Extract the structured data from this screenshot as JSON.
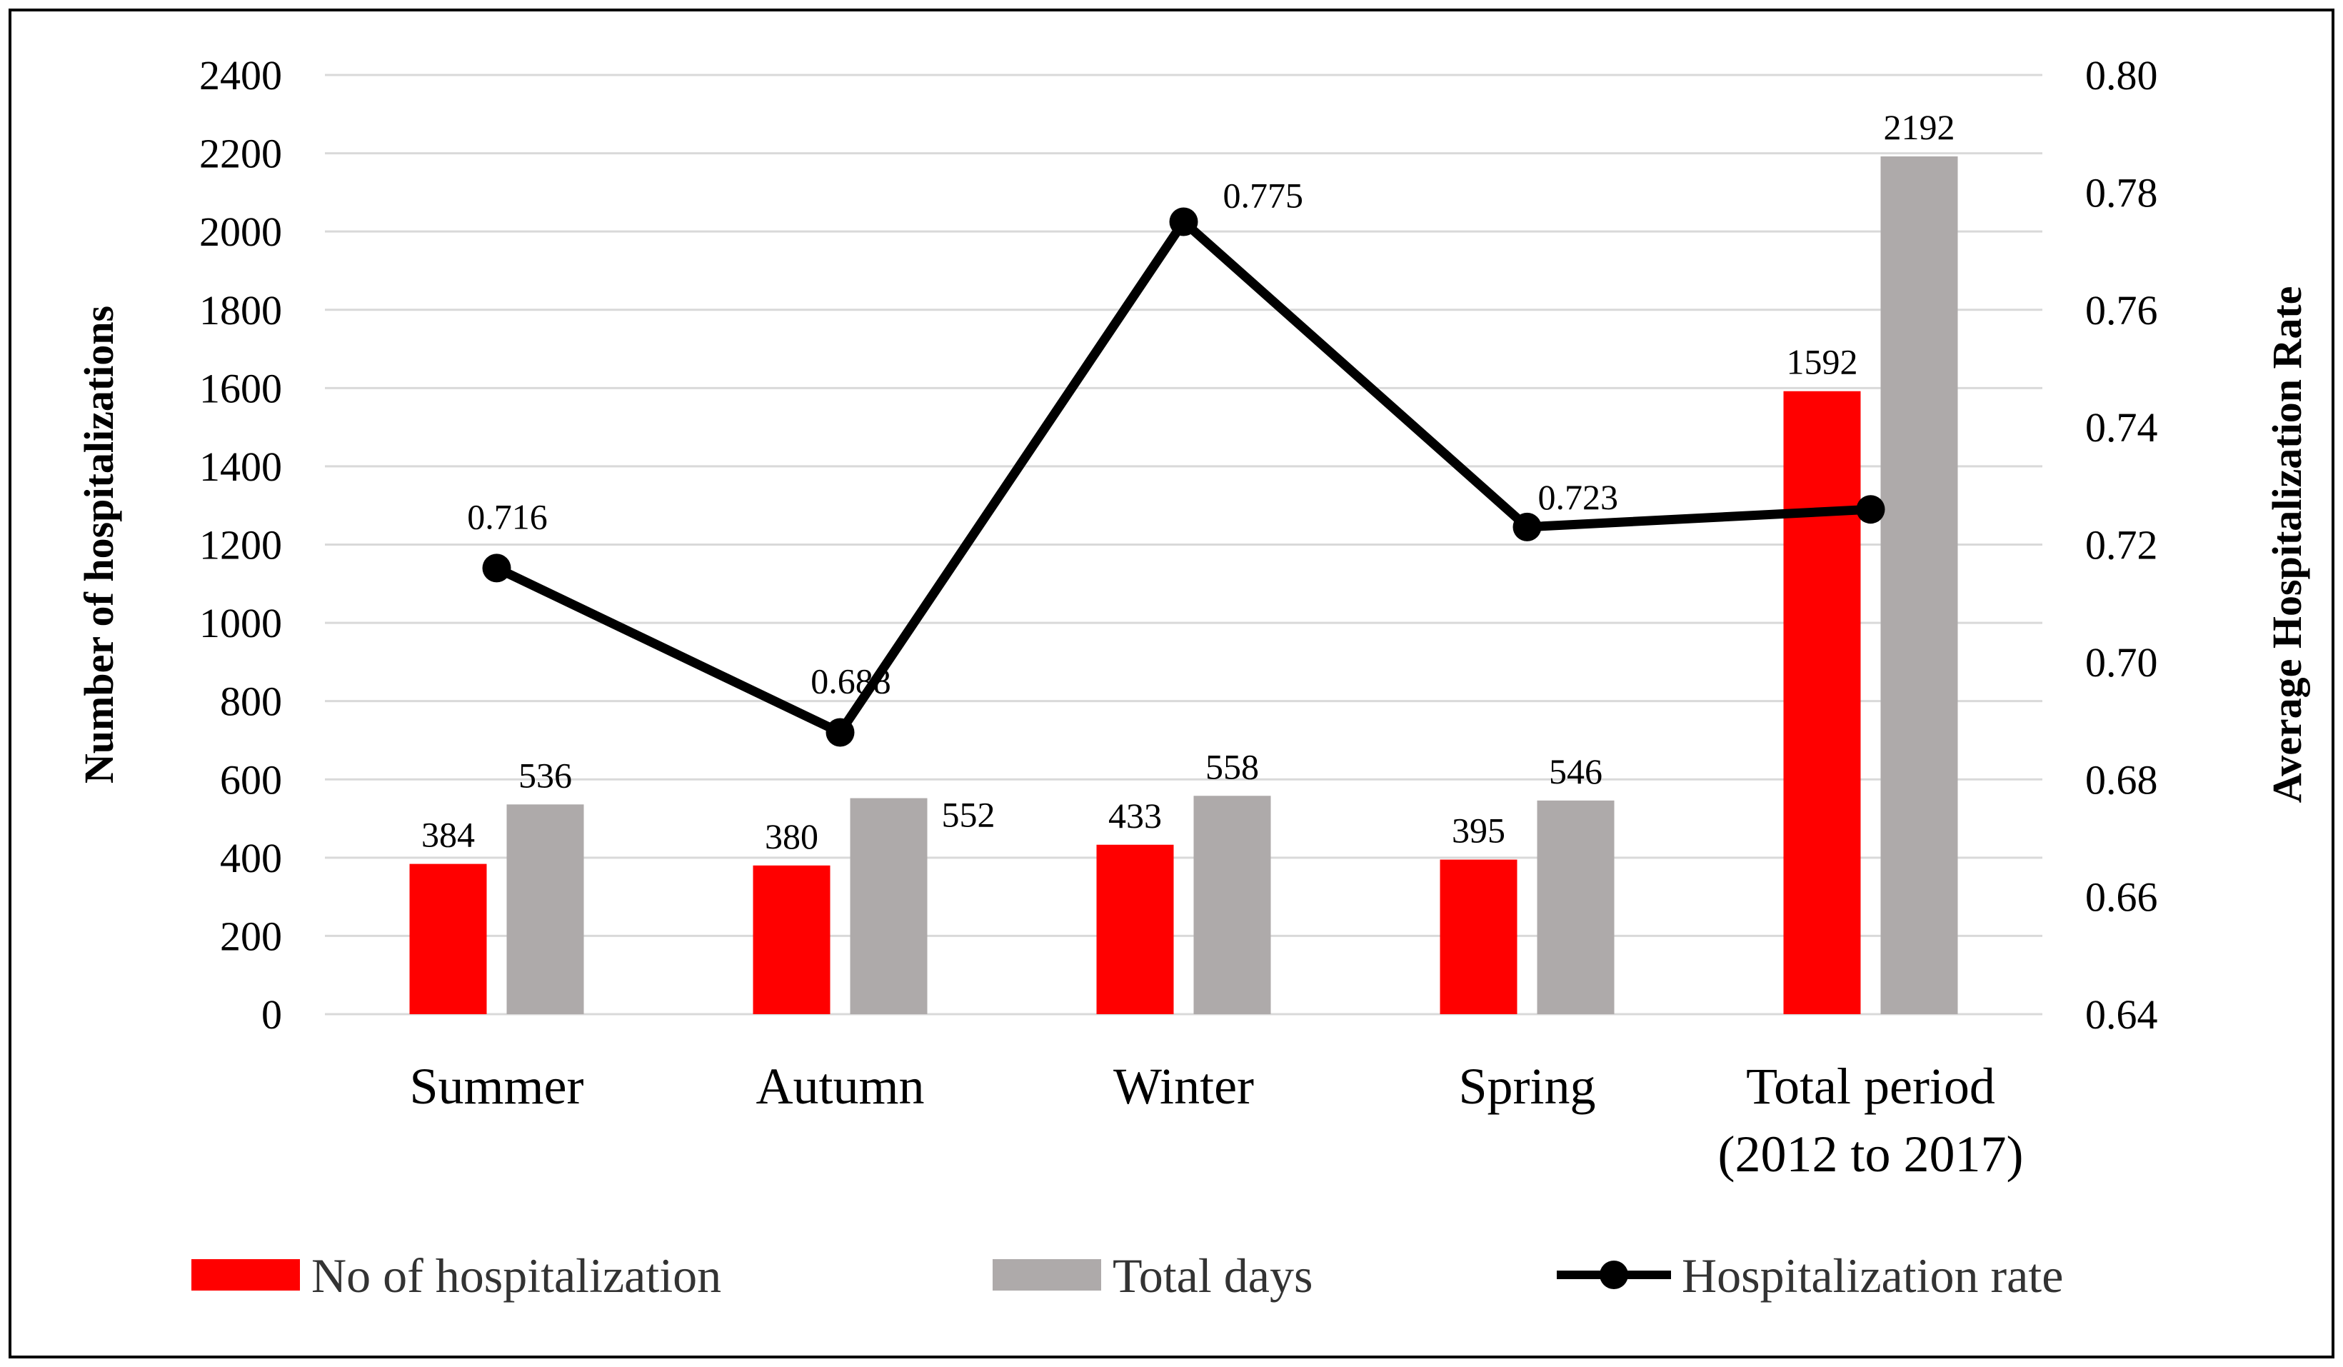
{
  "chart_data": {
    "type": "bar",
    "categories": [
      {
        "line1": "Summer",
        "line2": ""
      },
      {
        "line1": "Autumn",
        "line2": ""
      },
      {
        "line1": "Winter",
        "line2": ""
      },
      {
        "line1": "Spring",
        "line2": ""
      },
      {
        "line1": "Total period",
        "line2": "(2012 to 2017)"
      }
    ],
    "series": [
      {
        "name": "No of hospitalization",
        "kind": "bar",
        "axis": "left",
        "color": "#ff0000",
        "values": [
          384,
          380,
          433,
          395,
          1592
        ],
        "labels": [
          "384",
          "380",
          "433",
          "395",
          "1592"
        ]
      },
      {
        "name": "Total days",
        "kind": "bar",
        "axis": "left",
        "color": "#aeaaaa",
        "values": [
          536,
          552,
          558,
          546,
          2192
        ],
        "labels": [
          "536",
          "552",
          "558",
          "546",
          "2192"
        ]
      },
      {
        "name": "Hospitalization rate",
        "kind": "line",
        "axis": "right",
        "color": "#000000",
        "values": [
          0.716,
          0.688,
          0.775,
          0.723,
          0.726
        ],
        "labels": [
          "0.716",
          "0.688",
          "0.775",
          "0.723",
          ""
        ]
      }
    ],
    "y_left": {
      "label": "Number of hospitalizations",
      "min": 0,
      "max": 2400,
      "ticks": [
        "0",
        "200",
        "400",
        "600",
        "800",
        "1000",
        "1200",
        "1400",
        "1600",
        "1800",
        "2000",
        "2200",
        "2400"
      ]
    },
    "y_right": {
      "label": "Average Hospitalization Rate",
      "min": 0.64,
      "max": 0.8,
      "ticks": [
        "0.64",
        "0.66",
        "0.68",
        "0.70",
        "0.72",
        "0.74",
        "0.76",
        "0.78",
        "0.80"
      ]
    },
    "grid": true,
    "legend_position": "bottom"
  }
}
